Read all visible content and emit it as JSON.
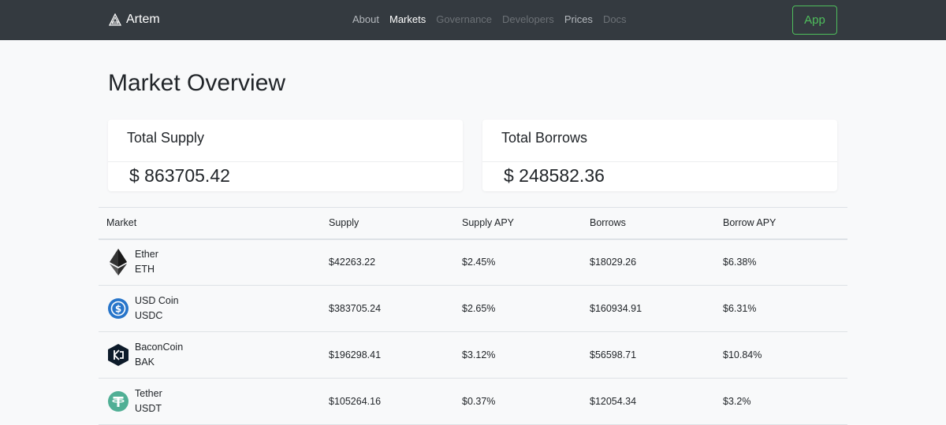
{
  "nav": {
    "brand": "Artem",
    "links": [
      {
        "label": "About",
        "state": "normal"
      },
      {
        "label": "Markets",
        "state": "active"
      },
      {
        "label": "Governance",
        "state": "disabled"
      },
      {
        "label": "Developers",
        "state": "disabled"
      },
      {
        "label": "Prices",
        "state": "normal"
      },
      {
        "label": "Docs",
        "state": "disabled"
      }
    ],
    "app_button": "App"
  },
  "page": {
    "title": "Market Overview"
  },
  "stats": {
    "supply": {
      "label": "Total Supply",
      "value": "$ 863705.42"
    },
    "borrows": {
      "label": "Total Borrows",
      "value": "$ 248582.36"
    }
  },
  "table": {
    "headers": {
      "market": "Market",
      "supply": "Supply",
      "supply_apy": "Supply APY",
      "borrows": "Borrows",
      "borrow_apy": "Borrow APY"
    },
    "rows": [
      {
        "name": "Ether",
        "symbol": "ETH",
        "icon": "ethereum-icon",
        "supply": "$42263.22",
        "supply_apy": "$2.45%",
        "borrows": "$18029.26",
        "borrow_apy": "$6.38%"
      },
      {
        "name": "USD Coin",
        "symbol": "USDC",
        "icon": "usdc-icon",
        "supply": "$383705.24",
        "supply_apy": "$2.65%",
        "borrows": "$160934.91",
        "borrow_apy": "$6.31%"
      },
      {
        "name": "BaconCoin",
        "symbol": "BAK",
        "icon": "baconcoin-icon",
        "supply": "$196298.41",
        "supply_apy": "$3.12%",
        "borrows": "$56598.71",
        "borrow_apy": "$10.84%"
      },
      {
        "name": "Tether",
        "symbol": "USDT",
        "icon": "tether-icon",
        "supply": "$105264.16",
        "supply_apy": "$0.37%",
        "borrows": "$12054.34",
        "borrow_apy": "$3.2%"
      }
    ]
  },
  "colors": {
    "navbar_bg": "#343a40",
    "app_button": "#4fbf5c",
    "usdc_blue": "#2775ca",
    "tether_green": "#50af95",
    "bacon_navy": "#0d1b2a"
  }
}
